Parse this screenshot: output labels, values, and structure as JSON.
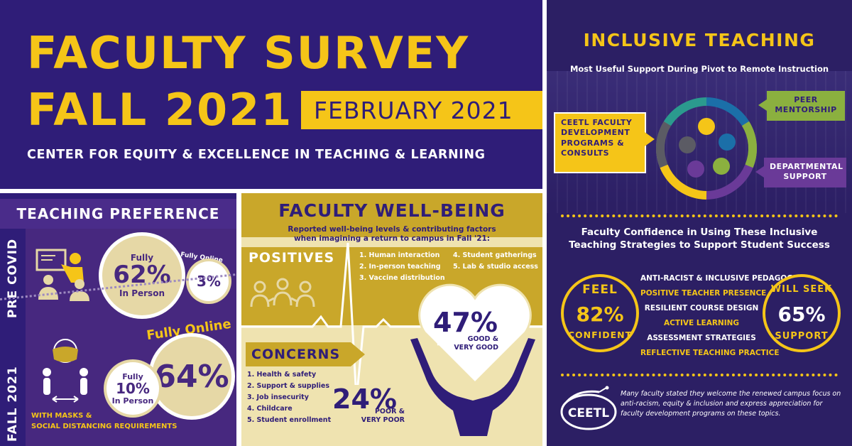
{
  "header": {
    "title_line1": "FACULTY SURVEY",
    "title_line2": "FALL 2021",
    "date": "FEBRUARY 2021",
    "subtitle": "CENTER FOR EQUITY & EXCELLENCE IN TEACHING & LEARNING",
    "accent_color": "#f5c518",
    "primary_color": "#2f1d78"
  },
  "preference": {
    "title": "TEACHING PREFERENCE",
    "pre_covid": {
      "label": "PRE COVID",
      "in_person_top": "Fully",
      "in_person_pct": "62%",
      "in_person_bottom": "In Person",
      "online_label": "Fully Online",
      "online_pct": "3%"
    },
    "fall_2021": {
      "label": "FALL 2021",
      "online_label": "Fully Online",
      "online_pct": "64%",
      "in_person_top": "Fully",
      "in_person_pct": "10%",
      "in_person_bottom": "In Person",
      "caption_line1": "WITH MASKS &",
      "caption_line2": "SOCIAL DISTANCING REQUIREMENTS"
    }
  },
  "wellbeing": {
    "title": "FACULTY WELL-BEING",
    "subtitle_line1": "Reported well-being levels & contributing factors",
    "subtitle_line2": "when imagining a return to campus in Fall '21:",
    "positives_label": "POSITIVES",
    "positives": [
      "1. Human interaction",
      "2. In-person teaching",
      "3. Vaccine distribution",
      "4. Student gatherings",
      "5. Lab & studio access"
    ],
    "good_pct": "47%",
    "good_label_line1": "GOOD &",
    "good_label_line2": "VERY GOOD",
    "concerns_label": "CONCERNS",
    "concerns": [
      "1. Health & safety",
      "2. Support & supplies",
      "3. Job insecurity",
      "4. Childcare",
      "5. Student enrollment"
    ],
    "poor_pct": "24%",
    "poor_label_line1": "POOR &",
    "poor_label_line2": "VERY POOR"
  },
  "inclusive": {
    "title": "INCLUSIVE TEACHING",
    "subtitle": "Most Useful Support During Pivot to Remote Instruction",
    "supports": {
      "ceetl": [
        "CEETL FACULTY",
        "DEVELOPMENT",
        "PROGRAMS &",
        "CONSULTS"
      ],
      "peer": [
        "PEER",
        "MENTORSHIP"
      ],
      "departmental": [
        "DEPARTMENTAL",
        "SUPPORT"
      ]
    },
    "confidence_line1": "Faculty Confidence in Using These Inclusive",
    "confidence_line2": "Teaching Strategies to Support Student Success",
    "feel_top": "FEEL",
    "feel_pct": "82%",
    "feel_bottom": "CONFIDENT",
    "seek_top": "WILL SEEK",
    "seek_pct": "65%",
    "seek_bottom": "SUPPORT",
    "strategies": [
      "ANTI-RACIST & INCLUSIVE PEDAGOGIES",
      "POSITIVE TEACHER PRESENCE",
      "RESILIENT COURSE DESIGN",
      "ACTIVE LEARNING",
      "ASSESSMENT STRATEGIES",
      "REFLECTIVE TEACHING PRACTICE"
    ],
    "logo_text": "CEETL",
    "note": "Many faculty stated they welcome the renewed campus focus on anti-racism, equity & inclusion and express appreciation for faculty development programs on these topics."
  }
}
